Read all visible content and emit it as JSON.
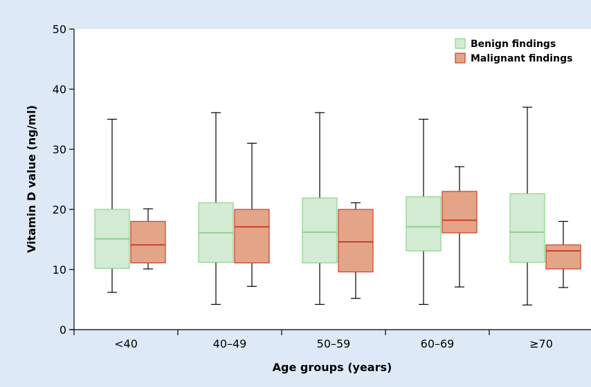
{
  "chart_data": {
    "type": "boxplot",
    "xlabel": "Age groups (years)",
    "ylabel": "Vitamin D value (ng/ml)",
    "ylim": [
      0,
      50
    ],
    "yticks": [
      0,
      10,
      20,
      30,
      40,
      50
    ],
    "grid": false,
    "legend_position": "top-right",
    "categories": [
      "<40",
      "40–49",
      "50–59",
      "60–69",
      "≥70"
    ],
    "series": [
      {
        "name": "Benign findings",
        "fill": "#d3ecd3",
        "stroke": "#8fd08f",
        "median_color": "#8fd08f",
        "boxes": [
          {
            "min": 6.2,
            "q1": 10.2,
            "median": 15.1,
            "q3": 20.0,
            "max": 35.0
          },
          {
            "min": 4.2,
            "q1": 11.2,
            "median": 16.1,
            "q3": 21.1,
            "max": 36.1
          },
          {
            "min": 4.2,
            "q1": 11.1,
            "median": 16.2,
            "q3": 21.9,
            "max": 36.1
          },
          {
            "min": 4.2,
            "q1": 13.1,
            "median": 17.1,
            "q3": 22.1,
            "max": 35.0
          },
          {
            "min": 4.1,
            "q1": 11.2,
            "median": 16.2,
            "q3": 22.6,
            "max": 37.0
          }
        ]
      },
      {
        "name": "Malignant findings",
        "fill": "#e4a487",
        "stroke": "#c8402a",
        "median_color": "#c8402a",
        "boxes": [
          {
            "min": 10.1,
            "q1": 11.1,
            "median": 14.1,
            "q3": 18.0,
            "max": 20.1
          },
          {
            "min": 7.2,
            "q1": 11.1,
            "median": 17.1,
            "q3": 20.0,
            "max": 31.0
          },
          {
            "min": 5.2,
            "q1": 9.6,
            "median": 14.6,
            "q3": 20.0,
            "max": 21.1
          },
          {
            "min": 7.1,
            "q1": 16.1,
            "median": 18.2,
            "q3": 23.0,
            "max": 27.1
          },
          {
            "min": 7.0,
            "q1": 10.1,
            "median": 13.1,
            "q3": 14.1,
            "max": 18.0
          }
        ]
      }
    ]
  }
}
